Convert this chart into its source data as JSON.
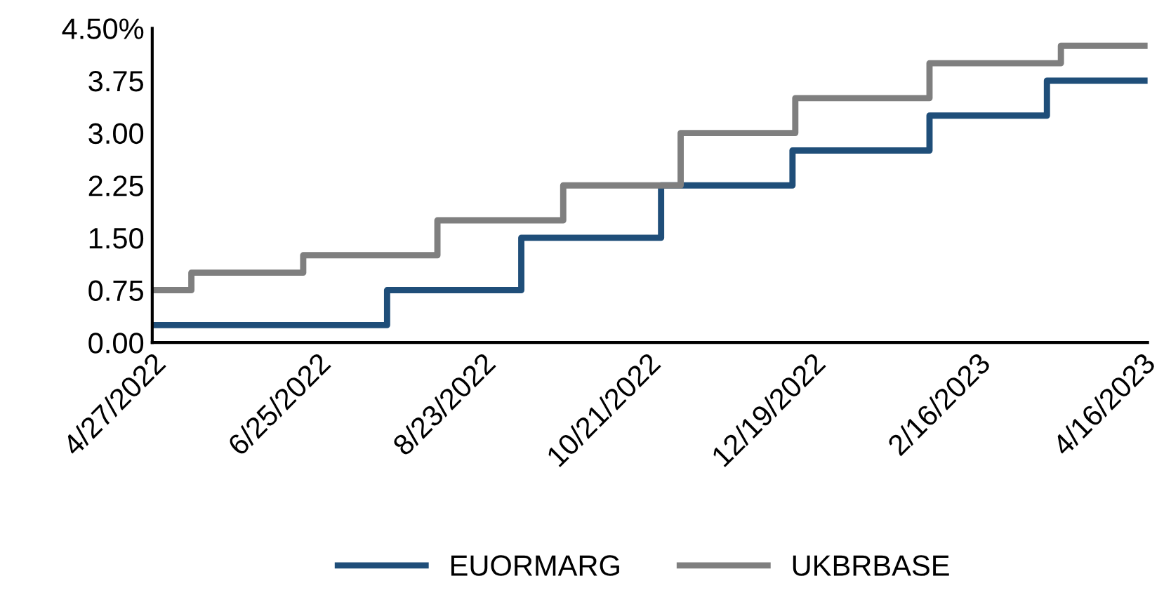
{
  "chart_data": {
    "type": "step",
    "series": [
      {
        "name": "EUORMARG",
        "color": "#1f4e79",
        "x": [
          "2022-04-27",
          "2022-07-20",
          "2022-09-06",
          "2022-10-26",
          "2022-12-12",
          "2023-01-30",
          "2023-03-13",
          "2023-04-18"
        ],
        "values": [
          0.25,
          0.75,
          1.5,
          2.25,
          2.75,
          3.25,
          3.75,
          3.75
        ]
      },
      {
        "name": "UKBRBASE",
        "color": "#7f7f7f",
        "x": [
          "2022-04-27",
          "2022-05-11",
          "2022-06-20",
          "2022-08-07",
          "2022-09-21",
          "2022-11-02",
          "2022-12-13",
          "2023-01-30",
          "2023-03-18",
          "2023-04-18"
        ],
        "values": [
          0.75,
          1.0,
          1.25,
          1.75,
          2.25,
          3.0,
          3.5,
          4.0,
          4.25,
          4.25
        ]
      }
    ],
    "xlim": [
      "2022-04-27",
      "2023-04-18"
    ],
    "xticks": [
      {
        "value": "2022-04-27",
        "label": "4/27/2022"
      },
      {
        "value": "2022-06-25",
        "label": "6/25/2022"
      },
      {
        "value": "2022-08-23",
        "label": "8/23/2022"
      },
      {
        "value": "2022-10-21",
        "label": "10/21/2022"
      },
      {
        "value": "2022-12-19",
        "label": "12/19/2022"
      },
      {
        "value": "2023-02-16",
        "label": "2/16/2023"
      },
      {
        "value": "2023-04-16",
        "label": "4/16/2023"
      }
    ],
    "ylim": [
      0,
      4.5
    ],
    "yticks": [
      {
        "value": 0,
        "label": "0.00"
      },
      {
        "value": 0.75,
        "label": "0.75"
      },
      {
        "value": 1.5,
        "label": "1.50"
      },
      {
        "value": 2.25,
        "label": "2.25"
      },
      {
        "value": 3.0,
        "label": "3.00"
      },
      {
        "value": 3.75,
        "label": "3.75"
      },
      {
        "value": 4.5,
        "label": "4.50%"
      }
    ],
    "grid": false,
    "legend": "bottom",
    "line_style": "solid"
  }
}
